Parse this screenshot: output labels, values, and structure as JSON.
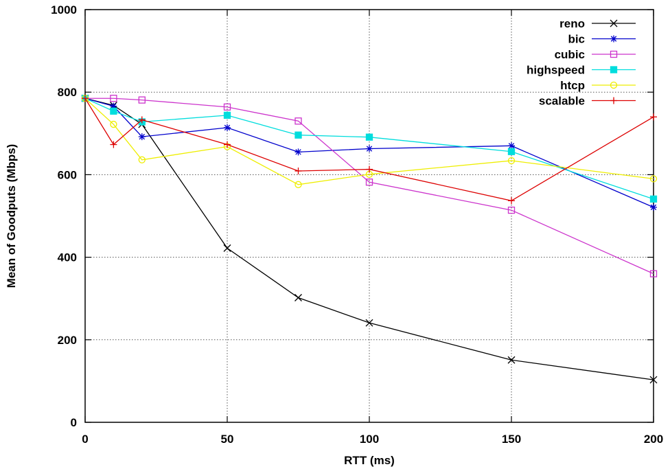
{
  "chart_data": {
    "type": "line",
    "xlabel": "RTT (ms)",
    "ylabel": "Mean of Goodputs (Mbps)",
    "xlim": [
      0,
      200
    ],
    "ylim": [
      0,
      1000
    ],
    "xticks": [
      0,
      50,
      100,
      150,
      200
    ],
    "yticks": [
      0,
      200,
      400,
      600,
      800,
      1000
    ],
    "grid": true,
    "legend_position": "top-right",
    "x": [
      0,
      10,
      20,
      50,
      75,
      100,
      150,
      200
    ],
    "series": [
      {
        "name": "reno",
        "color": "#000000",
        "marker": "x",
        "values": [
          785,
          768,
          722,
          422,
          302,
          241,
          151,
          103
        ]
      },
      {
        "name": "bic",
        "color": "#0000cc",
        "marker": "star",
        "values": [
          785,
          766,
          692,
          714,
          655,
          663,
          670,
          521
        ]
      },
      {
        "name": "cubic",
        "color": "#cc33cc",
        "marker": "square-open",
        "values": [
          785,
          785,
          781,
          764,
          730,
          582,
          514,
          360
        ]
      },
      {
        "name": "highspeed",
        "color": "#00dddd",
        "marker": "square-filled",
        "values": [
          785,
          754,
          728,
          744,
          696,
          691,
          656,
          541
        ]
      },
      {
        "name": "htcp",
        "color": "#eeee00",
        "marker": "circle-open",
        "values": [
          785,
          722,
          636,
          668,
          576,
          601,
          634,
          590
        ]
      },
      {
        "name": "scalable",
        "color": "#dd0000",
        "marker": "plus",
        "values": [
          785,
          673,
          733,
          673,
          609,
          613,
          537,
          740
        ]
      }
    ]
  }
}
